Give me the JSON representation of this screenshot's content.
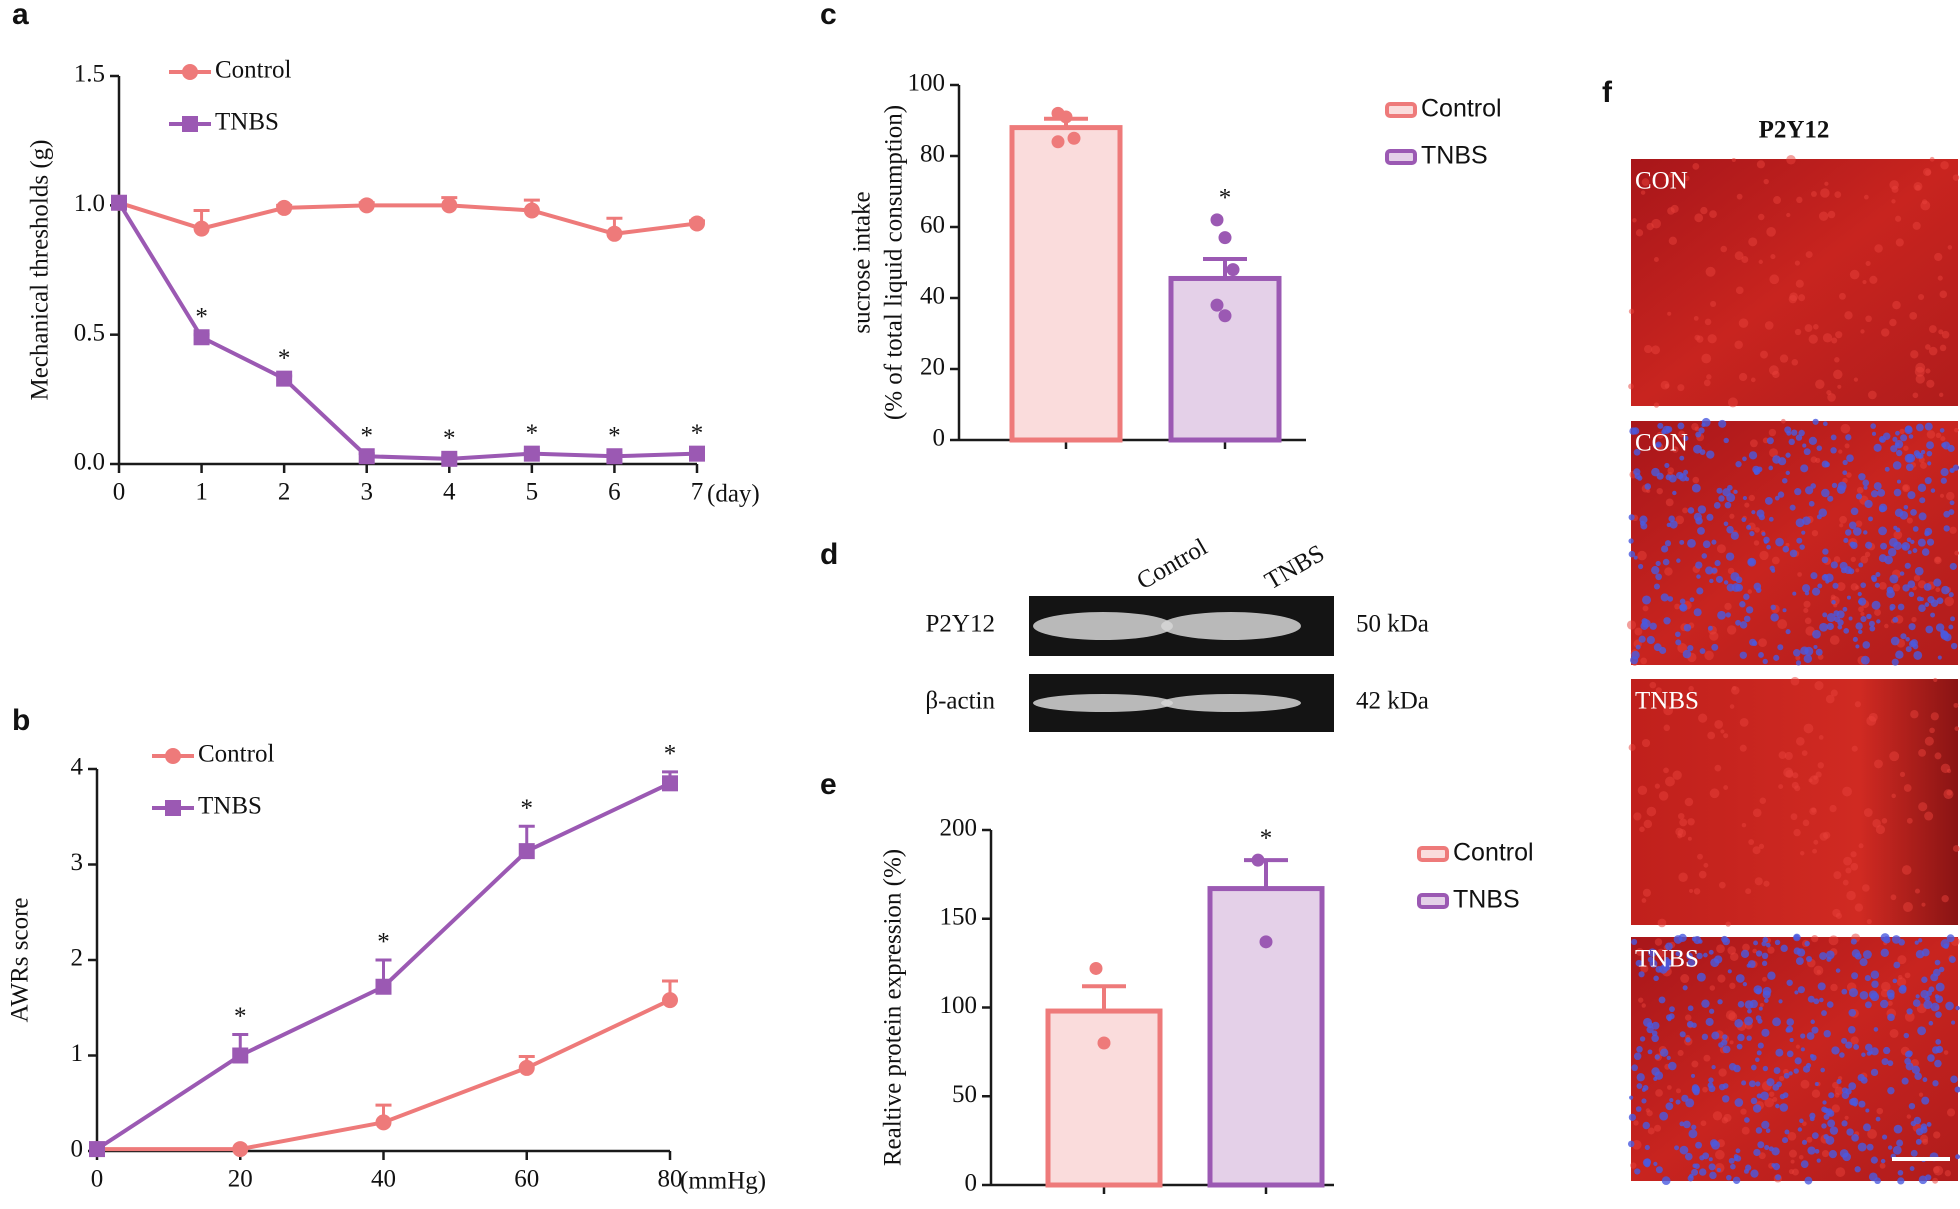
{
  "chart_data": [
    {
      "type": "line",
      "panel_label": "a",
      "ylabel": "Mechanical  thresholds (g)",
      "xlabel": "(day)",
      "x": [
        0,
        1,
        2,
        3,
        4,
        5,
        6,
        7
      ],
      "xlim": [
        0,
        7
      ],
      "xticks": [
        0,
        1,
        2,
        3,
        4,
        5,
        6,
        7
      ],
      "ylim": [
        0,
        1.5
      ],
      "yticks": [
        {
          "value": 0,
          "label": "0.0"
        },
        0.5,
        {
          "value": 1,
          "label": "1.0"
        },
        1.5
      ],
      "series": [
        {
          "name": "Control",
          "color": "#ee7a7a",
          "marker": "circle",
          "values": [
            1.01,
            0.91,
            0.99,
            1.0,
            1.0,
            0.98,
            0.89,
            0.93
          ],
          "errors": [
            0,
            0.07,
            0.01,
            0.01,
            0.03,
            0.04,
            0.06,
            0.01
          ]
        },
        {
          "name": "TNBS",
          "color": "#9b59b3",
          "marker": "square",
          "values": [
            1.01,
            0.49,
            0.33,
            0.03,
            0.02,
            0.04,
            0.03,
            0.04
          ],
          "errors": [
            0,
            0.01,
            0.01,
            0.01,
            0.01,
            0.01,
            0.01,
            0.01
          ],
          "value_annotations": [
            null,
            "*",
            "*",
            "*",
            "*",
            "*",
            "*",
            "*"
          ]
        }
      ]
    },
    {
      "type": "line",
      "panel_label": "b",
      "ylabel": "AWRs score",
      "xlabel": "(mmHg)",
      "x": [
        0,
        20,
        40,
        60,
        80
      ],
      "xlim": [
        0,
        80
      ],
      "xticks": [
        0,
        20,
        40,
        60,
        80
      ],
      "ylim": [
        0,
        4
      ],
      "yticks": [
        0,
        1,
        2,
        3,
        4
      ],
      "series": [
        {
          "name": "Control",
          "color": "#ee7a7a",
          "marker": "circle",
          "values": [
            0.02,
            0.02,
            0.3,
            0.87,
            1.58
          ],
          "errors": [
            0,
            0,
            0.18,
            0.12,
            0.2
          ]
        },
        {
          "name": "TNBS",
          "color": "#9b59b3",
          "marker": "square",
          "values": [
            0.02,
            1.0,
            1.72,
            3.14,
            3.85
          ],
          "errors": [
            0,
            0.22,
            0.28,
            0.26,
            0.12
          ],
          "value_annotations": [
            null,
            "*",
            "*",
            "*",
            "*"
          ]
        }
      ]
    },
    {
      "type": "bar",
      "panel_label": "c",
      "ylabel": [
        "sucrose intake",
        "(% of total liquid consumption)"
      ],
      "ylim": [
        0,
        100
      ],
      "yticks": [
        0,
        20,
        40,
        60,
        80,
        100
      ],
      "series": [
        {
          "name": "Control",
          "color": "#ee7a7a",
          "fill": "#fadcdc",
          "values": [
            88
          ],
          "errors": [
            2.5
          ],
          "points": [
            92,
            91,
            85,
            84
          ]
        },
        {
          "name": "TNBS",
          "color": "#9b59b3",
          "fill": "#e4d0e8",
          "values": [
            45.5
          ],
          "errors": [
            5.5
          ],
          "points": [
            62,
            57,
            48,
            38,
            35
          ],
          "value_annotations": [
            "*"
          ]
        }
      ]
    },
    {
      "type": "bar",
      "panel_label": "e",
      "ylabel": [
        "Realtive protein expression (%)"
      ],
      "ylim": [
        0,
        200
      ],
      "yticks": [
        0,
        50,
        100,
        150,
        200
      ],
      "series": [
        {
          "name": "Control",
          "color": "#ee7a7a",
          "fill": "#fadcdc",
          "values": [
            98
          ],
          "errors": [
            14
          ],
          "points": [
            122,
            80
          ]
        },
        {
          "name": "TNBS",
          "color": "#9b59b3",
          "fill": "#e4d0e8",
          "values": [
            167
          ],
          "errors": [
            16
          ],
          "points": [
            183,
            137
          ],
          "value_annotations": [
            "*"
          ]
        }
      ]
    }
  ],
  "blot": {
    "panel_label": "d",
    "lanes": [
      "Control",
      "TNBS"
    ],
    "rows": [
      {
        "protein": "P2Y12",
        "size": "50 kDa"
      },
      {
        "protein": "β-actin",
        "size": "42 kDa"
      }
    ]
  },
  "micrographs": {
    "panel_label": "f",
    "title": "P2Y12",
    "images": [
      "CON",
      "CON",
      "TNBS",
      "TNBS"
    ]
  }
}
